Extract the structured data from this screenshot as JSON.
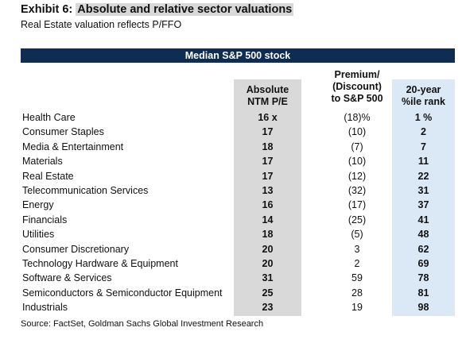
{
  "exhibit": {
    "label": "Exhibit 6:",
    "title": "Absolute and relative sector valuations"
  },
  "subtitle": "Real Estate valuation reflects P/FFO",
  "table": {
    "band_title": "Median S&P 500 stock",
    "headers": {
      "pe": [
        "Absolute",
        "NTM P/E"
      ],
      "premium": [
        "Premium/",
        "(Discount)",
        "to S&P 500"
      ],
      "rank": [
        "20-year",
        "%ile rank"
      ]
    },
    "rows": [
      {
        "sector": "Health Care",
        "pe": "16 x",
        "premium": "(18)%",
        "rank": "1 %"
      },
      {
        "sector": "Consumer Staples",
        "pe": "17",
        "premium": "(10)",
        "rank": "2"
      },
      {
        "sector": "Media & Entertainment",
        "pe": "18",
        "premium": "(7)",
        "rank": "7"
      },
      {
        "sector": "Materials",
        "pe": "17",
        "premium": "(10)",
        "rank": "11"
      },
      {
        "sector": "Real Estate",
        "pe": "17",
        "premium": "(12)",
        "rank": "22"
      },
      {
        "sector": "Telecommunication Services",
        "pe": "13",
        "premium": "(32)",
        "rank": "31"
      },
      {
        "sector": "Energy",
        "pe": "16",
        "premium": "(17)",
        "rank": "37"
      },
      {
        "sector": "Financials",
        "pe": "14",
        "premium": "(25)",
        "rank": "41"
      },
      {
        "sector": "Utilities",
        "pe": "18",
        "premium": "(5)",
        "rank": "48"
      },
      {
        "sector": "Consumer Discretionary",
        "pe": "20",
        "premium": "3",
        "rank": "62"
      },
      {
        "sector": "Technology Hardware & Equipment",
        "pe": "20",
        "premium": "2",
        "rank": "69"
      },
      {
        "sector": "Software & Services",
        "pe": "31",
        "premium": "59",
        "rank": "78"
      },
      {
        "sector": "Semiconductors & Semiconductor Equipment",
        "pe": "25",
        "premium": "28",
        "rank": "81"
      },
      {
        "sector": "Industrials",
        "pe": "23",
        "premium": "19",
        "rank": "98"
      }
    ]
  },
  "source": "Source: FactSet, Goldman Sachs Global Investment Research",
  "colors": {
    "band": "#0f2c52",
    "pe_column": "#d9d9d9",
    "rank_column": "#dbe9f7",
    "title_highlight": "#d9d9d9"
  }
}
